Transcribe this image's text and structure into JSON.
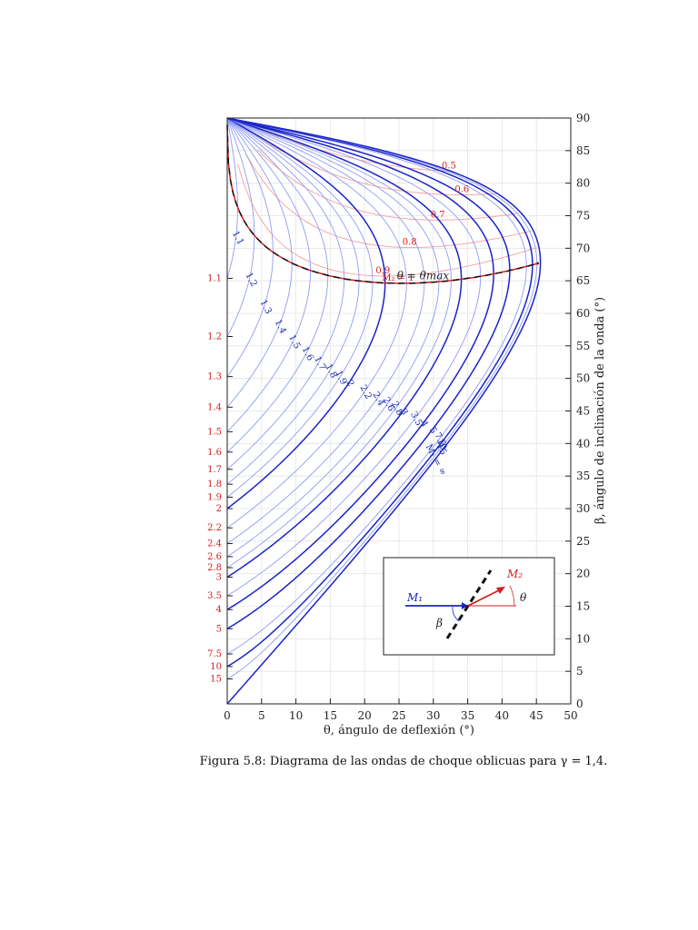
{
  "chart_data": {
    "type": "line",
    "title": "",
    "caption": "Figura 5.8: Diagrama de las ondas de choque oblicuas para γ = 1,4.",
    "xlabel": "θ, ángulo de deflexión (°)",
    "ylabel": "β, ángulo de inclinación de la onda (°)",
    "xlim": [
      0,
      50
    ],
    "ylim": [
      0,
      90
    ],
    "xticks": [
      0,
      5,
      10,
      15,
      20,
      25,
      30,
      35,
      40,
      45,
      50
    ],
    "yticks": [
      0,
      5,
      10,
      15,
      20,
      25,
      30,
      35,
      40,
      45,
      50,
      55,
      60,
      65,
      70,
      75,
      80,
      85,
      90
    ],
    "grid": true,
    "gamma": 1.4,
    "m1_curves": [
      {
        "label": "1.1",
        "M1": 1.1,
        "emph": false
      },
      {
        "label": "1.2",
        "M1": 1.2,
        "emph": false
      },
      {
        "label": "1.3",
        "M1": 1.3,
        "emph": false
      },
      {
        "label": "1.4",
        "M1": 1.4,
        "emph": false
      },
      {
        "label": "1.5",
        "M1": 1.5,
        "emph": false
      },
      {
        "label": "1.6",
        "M1": 1.6,
        "emph": false
      },
      {
        "label": "1.7",
        "M1": 1.7,
        "emph": false
      },
      {
        "label": "1.8",
        "M1": 1.8,
        "emph": false
      },
      {
        "label": "1.9",
        "M1": 1.9,
        "emph": false
      },
      {
        "label": "2",
        "M1": 2.0,
        "emph": true
      },
      {
        "label": "2.2",
        "M1": 2.2,
        "emph": false
      },
      {
        "label": "2.4",
        "M1": 2.4,
        "emph": false
      },
      {
        "label": "2.6",
        "M1": 2.6,
        "emph": false
      },
      {
        "label": "2.8",
        "M1": 2.8,
        "emph": false
      },
      {
        "label": "3",
        "M1": 3.0,
        "emph": true
      },
      {
        "label": "3.5",
        "M1": 3.5,
        "emph": false
      },
      {
        "label": "4",
        "M1": 4.0,
        "emph": true
      },
      {
        "label": "5",
        "M1": 5.0,
        "emph": true
      },
      {
        "label": "7.5",
        "M1": 7.5,
        "emph": false
      },
      {
        "label": "10",
        "M1": 10.0,
        "emph": true
      },
      {
        "label": "15",
        "M1": 15.0,
        "emph": false
      },
      {
        "label": "M₁ = ∞",
        "M1": 10000,
        "emph": true
      }
    ],
    "m2_curves": [
      {
        "label": "0.5",
        "M2": 0.5,
        "emph": false
      },
      {
        "label": "0.6",
        "M2": 0.6,
        "emph": false
      },
      {
        "label": "0.7",
        "M2": 0.7,
        "emph": false
      },
      {
        "label": "0.8",
        "M2": 0.8,
        "emph": false
      },
      {
        "label": "0.9",
        "M2": 0.9,
        "emph": false
      },
      {
        "label": "M₂ = 1",
        "M2": 1.0,
        "emph": true
      }
    ],
    "left_mach_labels": [
      {
        "label": "1.1",
        "M": 1.1
      },
      {
        "label": "1.2",
        "M": 1.2
      },
      {
        "label": "1.3",
        "M": 1.3
      },
      {
        "label": "1.4",
        "M": 1.4
      },
      {
        "label": "1.5",
        "M": 1.5
      },
      {
        "label": "1.6",
        "M": 1.6
      },
      {
        "label": "1.7",
        "M": 1.7
      },
      {
        "label": "1.8",
        "M": 1.8
      },
      {
        "label": "1.9",
        "M": 1.9
      },
      {
        "label": "2",
        "M": 2.0
      },
      {
        "label": "2.2",
        "M": 2.2
      },
      {
        "label": "2.4",
        "M": 2.4
      },
      {
        "label": "2.6",
        "M": 2.6
      },
      {
        "label": "2.8",
        "M": 2.8
      },
      {
        "label": "3",
        "M": 3.0
      },
      {
        "label": "3.5",
        "M": 3.5
      },
      {
        "label": "4",
        "M": 4.0
      },
      {
        "label": "5",
        "M": 5.0
      },
      {
        "label": "7.5",
        "M": 7.5
      },
      {
        "label": "10",
        "M": 10.0
      },
      {
        "label": "15",
        "M": 15.0
      }
    ],
    "theta_max_label": "θ = θmax",
    "inset": {
      "m1_label": "M₁",
      "m2_label": "M₂",
      "theta_label": "θ",
      "beta_label": "β"
    },
    "colors": {
      "m1_light": "#8f9cf2",
      "m1_dark": "#1a24c8",
      "m2_light": "#f2a0a0",
      "m2_dark": "#d81c1c",
      "grid": "#e4e4e4",
      "theta_max": "#111111"
    }
  }
}
